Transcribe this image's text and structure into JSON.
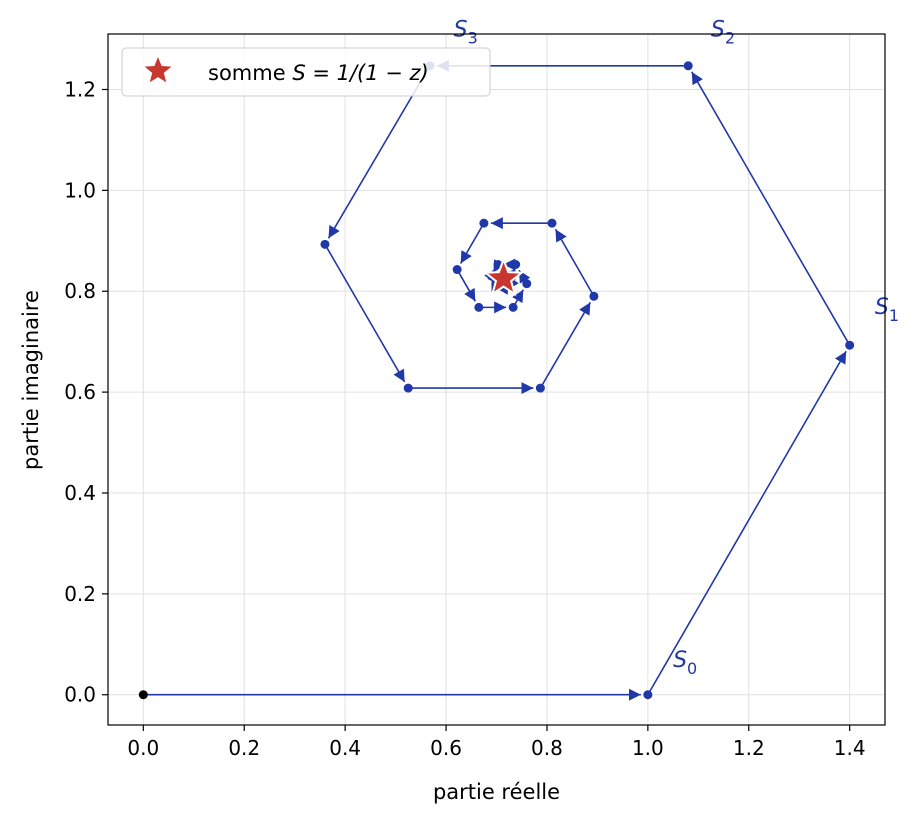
{
  "chart_data": {
    "type": "line",
    "xlabel": "partie réelle",
    "ylabel": "partie imaginaire",
    "xlim": [
      -0.07,
      1.47
    ],
    "ylim": [
      -0.06,
      1.31
    ],
    "grid": true,
    "x_ticks": [
      0.0,
      0.2,
      0.4,
      0.6,
      0.8,
      1.0,
      1.2,
      1.4
    ],
    "x_tick_labels": [
      "0.0",
      "0.2",
      "0.4",
      "0.6",
      "0.8",
      "1.0",
      "1.2",
      "1.4"
    ],
    "y_ticks": [
      0.0,
      0.2,
      0.4,
      0.6,
      0.8,
      1.0,
      1.2
    ],
    "y_tick_labels": [
      "0.0",
      "0.2",
      "0.4",
      "0.6",
      "0.8",
      "1.0",
      "1.2"
    ],
    "origin": {
      "x": 0.0,
      "y": 0.0
    },
    "series": [
      {
        "points": [
          {
            "x": 0.0,
            "y": 0.0
          },
          {
            "x": 1.0,
            "y": 0.0
          },
          {
            "x": 1.4,
            "y": 0.693
          },
          {
            "x": 1.08,
            "y": 1.247
          },
          {
            "x": 0.568,
            "y": 1.247
          },
          {
            "x": 0.36,
            "y": 0.893
          },
          {
            "x": 0.525,
            "y": 0.608
          },
          {
            "x": 0.787,
            "y": 0.608
          },
          {
            "x": 0.893,
            "y": 0.79
          },
          {
            "x": 0.81,
            "y": 0.935
          },
          {
            "x": 0.675,
            "y": 0.935
          },
          {
            "x": 0.622,
            "y": 0.843
          },
          {
            "x": 0.665,
            "y": 0.768
          },
          {
            "x": 0.733,
            "y": 0.768
          },
          {
            "x": 0.76,
            "y": 0.815
          },
          {
            "x": 0.738,
            "y": 0.853
          },
          {
            "x": 0.703,
            "y": 0.853
          },
          {
            "x": 0.69,
            "y": 0.83
          },
          {
            "x": 0.701,
            "y": 0.811
          },
          {
            "x": 0.719,
            "y": 0.811
          },
          {
            "x": 0.726,
            "y": 0.823
          },
          {
            "x": 0.72,
            "y": 0.833
          },
          {
            "x": 0.711,
            "y": 0.833
          }
        ]
      }
    ],
    "sum_point": {
      "x": 0.714,
      "y": 0.825
    },
    "annotations": [
      {
        "base": "S",
        "sub": "0",
        "x": 1.05,
        "y": 0.055
      },
      {
        "base": "S",
        "sub": "1",
        "x": 1.45,
        "y": 0.755
      },
      {
        "base": "S",
        "sub": "2",
        "x": 1.125,
        "y": 1.305
      },
      {
        "base": "S",
        "sub": "3",
        "x": 0.615,
        "y": 1.305
      }
    ],
    "legend": {
      "position": "upper-left",
      "label_prefix": "somme ",
      "label_math": "S = 1/(1 − z)"
    },
    "colors": {
      "path": "#2138a8",
      "sum_marker": "#c8372d",
      "origin": "#000000",
      "grid": "#e0e0e0"
    }
  }
}
